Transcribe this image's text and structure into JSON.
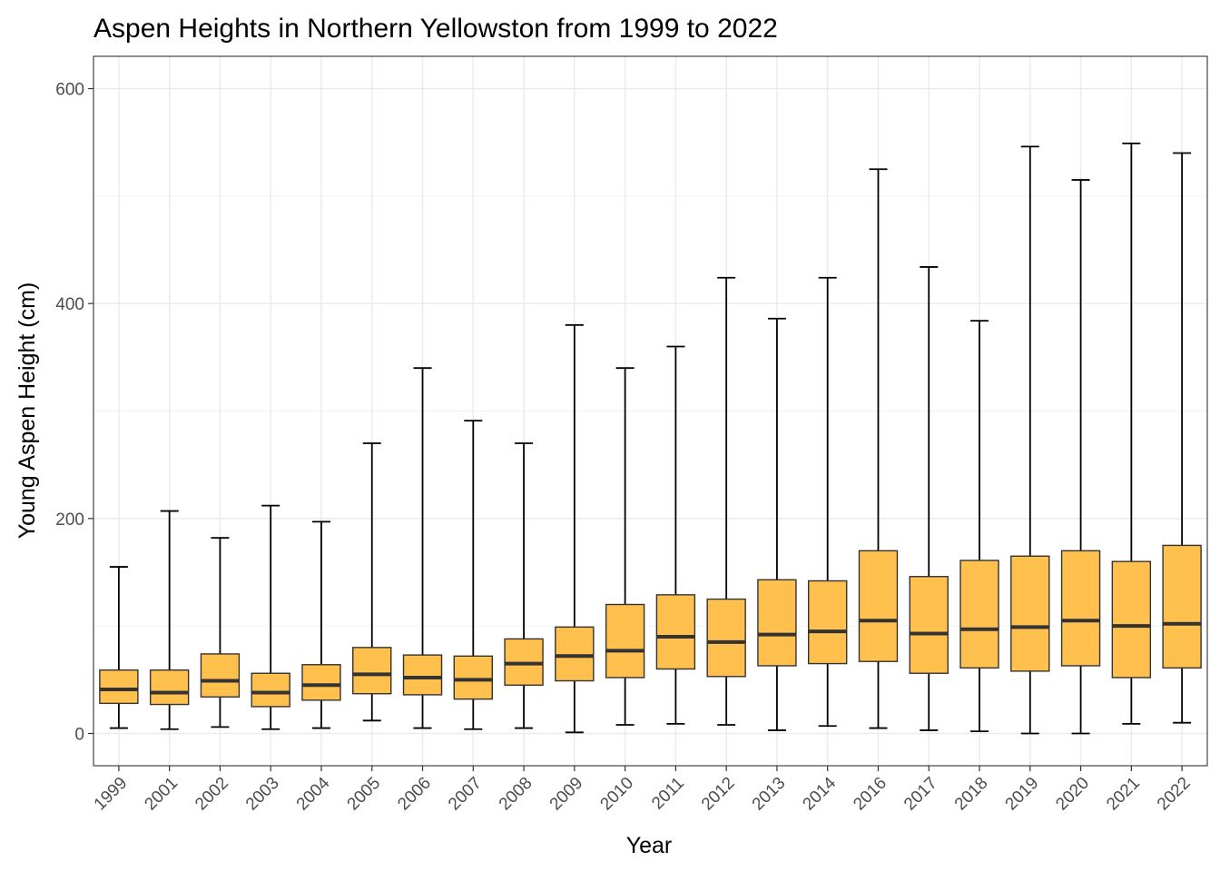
{
  "chart_data": {
    "type": "boxplot",
    "title": "Aspen Heights in Northern Yellowston from 1999 to 2022",
    "xlabel": "Year",
    "ylabel": "Young Aspen Height (cm)",
    "ylim": [
      -30,
      630
    ],
    "yticks": [
      0,
      200,
      400,
      600
    ],
    "grid": true,
    "box_fill_color": "#ffc04d",
    "box_stroke_color": "#333333",
    "categories": [
      "1999",
      "2001",
      "2002",
      "2003",
      "2004",
      "2005",
      "2006",
      "2007",
      "2008",
      "2009",
      "2010",
      "2011",
      "2012",
      "2013",
      "2014",
      "2016",
      "2017",
      "2018",
      "2019",
      "2020",
      "2021",
      "2022"
    ],
    "boxes": [
      {
        "min": 5,
        "q1": 28,
        "median": 41,
        "q3": 59,
        "max": 155
      },
      {
        "min": 4,
        "q1": 27,
        "median": 38,
        "q3": 59,
        "max": 207
      },
      {
        "min": 6,
        "q1": 34,
        "median": 49,
        "q3": 74,
        "max": 182
      },
      {
        "min": 4,
        "q1": 25,
        "median": 38,
        "q3": 56,
        "max": 212
      },
      {
        "min": 5,
        "q1": 31,
        "median": 45,
        "q3": 64,
        "max": 197
      },
      {
        "min": 12,
        "q1": 37,
        "median": 55,
        "q3": 80,
        "max": 270
      },
      {
        "min": 5,
        "q1": 36,
        "median": 52,
        "q3": 73,
        "max": 340
      },
      {
        "min": 4,
        "q1": 32,
        "median": 50,
        "q3": 72,
        "max": 291
      },
      {
        "min": 5,
        "q1": 45,
        "median": 65,
        "q3": 88,
        "max": 270
      },
      {
        "min": 1,
        "q1": 49,
        "median": 72,
        "q3": 99,
        "max": 380
      },
      {
        "min": 8,
        "q1": 52,
        "median": 77,
        "q3": 120,
        "max": 340
      },
      {
        "min": 9,
        "q1": 60,
        "median": 90,
        "q3": 129,
        "max": 360
      },
      {
        "min": 8,
        "q1": 53,
        "median": 85,
        "q3": 125,
        "max": 424
      },
      {
        "min": 3,
        "q1": 63,
        "median": 92,
        "q3": 143,
        "max": 386
      },
      {
        "min": 7,
        "q1": 65,
        "median": 95,
        "q3": 142,
        "max": 424
      },
      {
        "min": 5,
        "q1": 67,
        "median": 105,
        "q3": 170,
        "max": 525
      },
      {
        "min": 3,
        "q1": 56,
        "median": 93,
        "q3": 146,
        "max": 434
      },
      {
        "min": 2,
        "q1": 61,
        "median": 97,
        "q3": 161,
        "max": 384
      },
      {
        "min": 0,
        "q1": 58,
        "median": 99,
        "q3": 165,
        "max": 546
      },
      {
        "min": 0,
        "q1": 63,
        "median": 105,
        "q3": 170,
        "max": 515
      },
      {
        "min": 9,
        "q1": 52,
        "median": 100,
        "q3": 160,
        "max": 549
      },
      {
        "min": 10,
        "q1": 61,
        "median": 102,
        "q3": 175,
        "max": 540
      }
    ]
  }
}
